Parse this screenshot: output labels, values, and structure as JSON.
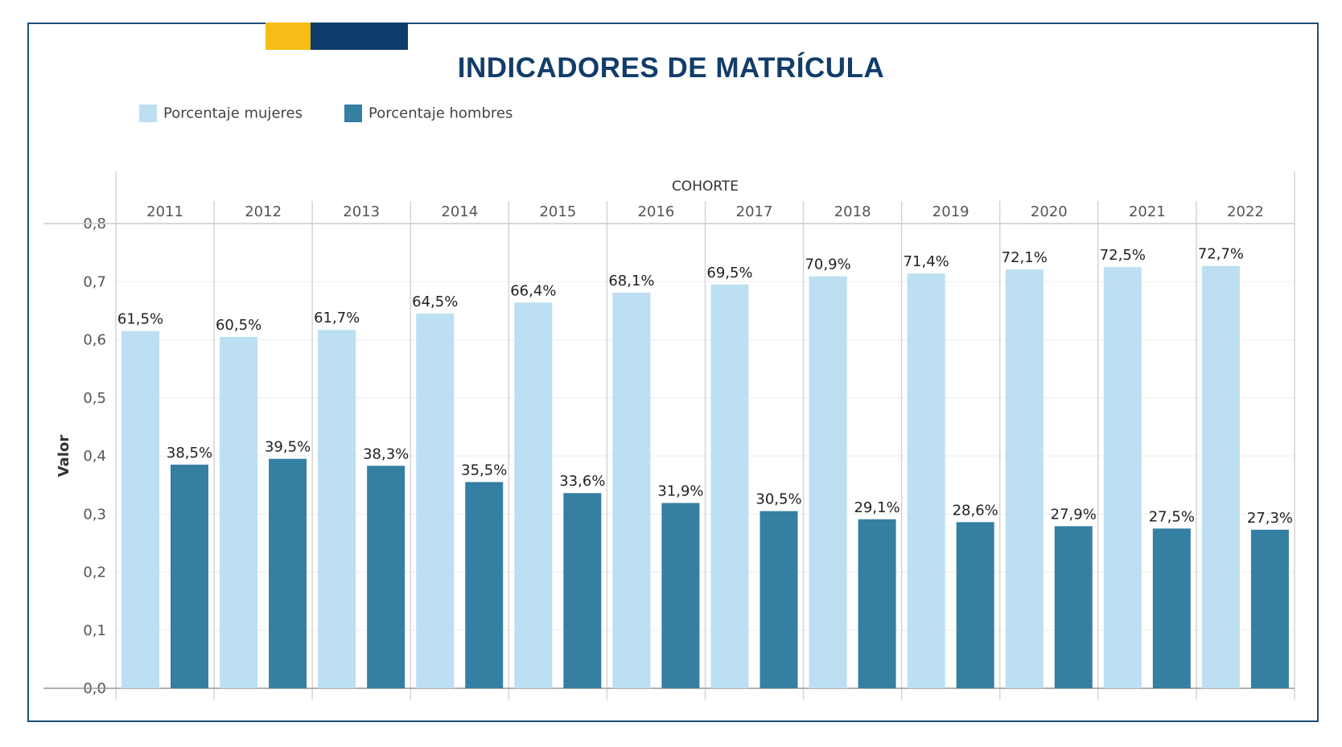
{
  "title": "INDICADORES DE MATRÍCULA",
  "colors": {
    "women": "#bcdff1",
    "men": "#357fa2",
    "title": "#123d6a",
    "accent_yellow": "#f6bd16",
    "accent_navy": "#0f3d6b",
    "frame": "#1d4e78"
  },
  "legend": [
    {
      "label": "Porcentaje mujeres",
      "color": "#bcdff1"
    },
    {
      "label": "Porcentaje hombres",
      "color": "#357fa2"
    }
  ],
  "chart_data": {
    "type": "bar",
    "column_header": "COHORTE",
    "ylabel": "Valor",
    "ylim": [
      0,
      0.8
    ],
    "yticks": [
      "0,0",
      "0,1",
      "0,2",
      "0,3",
      "0,4",
      "0,5",
      "0,6",
      "0,7",
      "0,8"
    ],
    "categories": [
      "2011",
      "2012",
      "2013",
      "2014",
      "2015",
      "2016",
      "2017",
      "2018",
      "2019",
      "2020",
      "2021",
      "2022"
    ],
    "series": [
      {
        "name": "Porcentaje mujeres",
        "values": [
          0.615,
          0.605,
          0.617,
          0.645,
          0.664,
          0.681,
          0.695,
          0.709,
          0.714,
          0.721,
          0.725,
          0.727
        ],
        "labels": [
          "61,5%",
          "60,5%",
          "61,7%",
          "64,5%",
          "66,4%",
          "68,1%",
          "69,5%",
          "70,9%",
          "71,4%",
          "72,1%",
          "72,5%",
          "72,7%"
        ]
      },
      {
        "name": "Porcentaje hombres",
        "values": [
          0.385,
          0.395,
          0.383,
          0.355,
          0.336,
          0.319,
          0.305,
          0.291,
          0.286,
          0.279,
          0.275,
          0.273
        ],
        "labels": [
          "38,5%",
          "39,5%",
          "38,3%",
          "35,5%",
          "33,6%",
          "31,9%",
          "30,5%",
          "29,1%",
          "28,6%",
          "27,9%",
          "27,5%",
          "27,3%"
        ]
      }
    ],
    "grid": true,
    "legend_position": "top-left"
  }
}
